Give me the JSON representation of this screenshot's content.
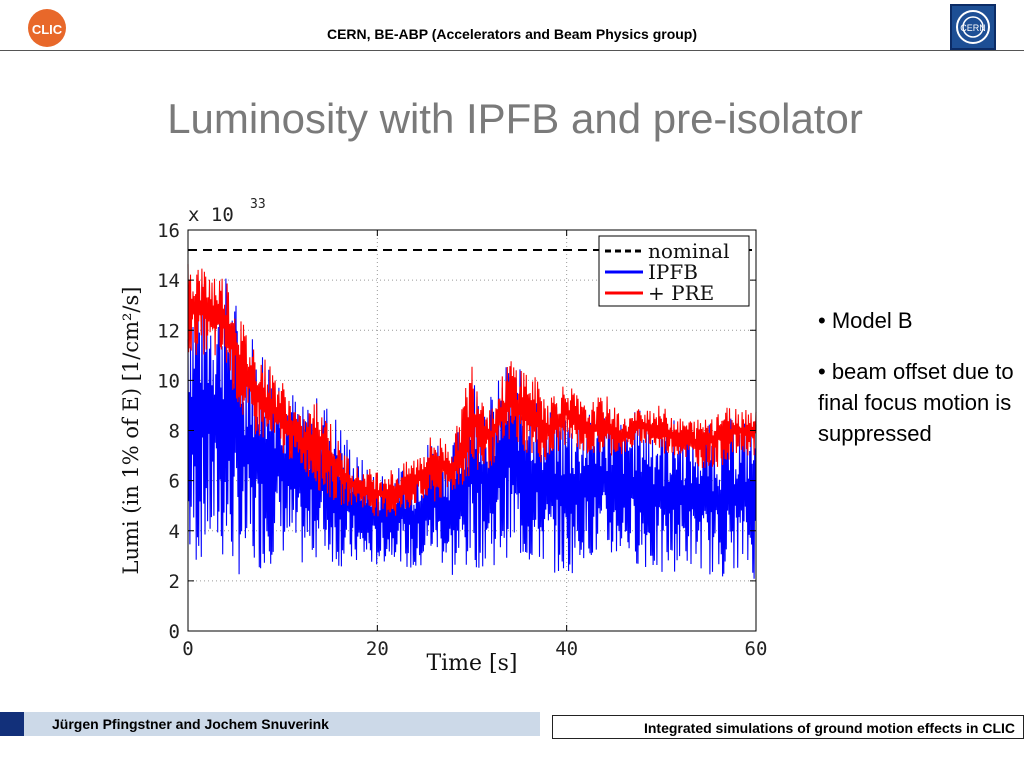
{
  "header": {
    "title": "CERN, BE-ABP (Accelerators and Beam Physics group)",
    "logo_left_text": "CLIC",
    "logo_right_text": "CERN"
  },
  "slide": {
    "title": "Luminosity with IPFB and pre-isolator",
    "bullets": [
      "• Model B",
      "• beam offset due to final focus motion is suppressed"
    ]
  },
  "footer": {
    "authors": "Jürgen Pfingstner and Jochem Snuverink",
    "talk_title": "Integrated simulations of ground motion effects in CLIC"
  },
  "colors": {
    "nominal": "#000000",
    "ipfb": "#0000ff",
    "pre": "#ff0000",
    "title_gray": "#7a7a7a",
    "footer_blue": "#12307a"
  },
  "chart_data": {
    "type": "line",
    "title": "",
    "xlabel": "Time [s]",
    "ylabel": "Lumi (in 1% of E) [1/cm²/s]",
    "y_multiplier": "x 10",
    "y_exponent": "33",
    "xlim": [
      0,
      60
    ],
    "ylim": [
      0,
      16
    ],
    "xticks": [
      "0",
      "20",
      "40",
      "60"
    ],
    "yticks": [
      "0",
      "2",
      "4",
      "6",
      "8",
      "10",
      "12",
      "14",
      "16"
    ],
    "grid": true,
    "legend_position": "top-right",
    "legend": [
      "nominal",
      "IPFB",
      "+ PRE"
    ],
    "series": [
      {
        "name": "nominal",
        "style": "dashed",
        "x": [
          0,
          60
        ],
        "y": [
          15.2,
          15.2
        ]
      },
      {
        "name": "IPFB",
        "style": "solid",
        "x": [
          0,
          2,
          4,
          6,
          8,
          10,
          12,
          14,
          16,
          18,
          20,
          22,
          24,
          26,
          28,
          30,
          32,
          34,
          36,
          38,
          40,
          42,
          44,
          46,
          48,
          50,
          52,
          54,
          56,
          58,
          60
        ],
        "y_max": [
          14.5,
          14.0,
          14.3,
          12.5,
          11.5,
          10.5,
          9.0,
          9.5,
          8.5,
          7.0,
          6.5,
          6.5,
          7.0,
          8.0,
          7.5,
          10.5,
          9.5,
          11.0,
          10.0,
          9.0,
          9.0,
          8.5,
          9.5,
          8.5,
          9.0,
          8.5,
          8.5,
          8.0,
          8.5,
          8.5,
          8.5
        ],
        "y_min": [
          2.0,
          3.0,
          2.5,
          2.0,
          2.5,
          3.0,
          2.5,
          3.0,
          2.5,
          2.5,
          2.5,
          3.0,
          2.0,
          3.0,
          2.0,
          2.5,
          2.5,
          3.0,
          2.5,
          2.5,
          2.0,
          3.0,
          2.5,
          3.0,
          2.5,
          2.0,
          2.5,
          2.5,
          2.0,
          2.5,
          2.0
        ]
      },
      {
        "name": "+ PRE",
        "style": "solid",
        "x": [
          0,
          2,
          4,
          6,
          8,
          10,
          12,
          14,
          16,
          18,
          20,
          22,
          24,
          26,
          28,
          30,
          32,
          34,
          36,
          38,
          40,
          42,
          44,
          46,
          48,
          50,
          52,
          54,
          56,
          58,
          60
        ],
        "y_max": [
          15.0,
          14.5,
          14.3,
          12.2,
          11.0,
          10.0,
          8.5,
          9.5,
          7.5,
          6.5,
          6.5,
          6.5,
          7.0,
          8.0,
          7.5,
          11.0,
          9.0,
          11.0,
          10.5,
          9.5,
          10.0,
          9.0,
          9.5,
          8.5,
          9.0,
          9.0,
          8.5,
          8.5,
          9.0,
          9.0,
          9.0
        ],
        "y_min": [
          11.0,
          11.0,
          10.5,
          8.0,
          7.5,
          7.0,
          6.5,
          5.5,
          5.0,
          5.0,
          4.5,
          4.5,
          5.0,
          5.0,
          5.5,
          6.0,
          6.5,
          7.5,
          7.0,
          6.5,
          7.5,
          7.0,
          7.0,
          7.0,
          7.5,
          7.0,
          7.0,
          6.5,
          6.5,
          7.0,
          7.0
        ]
      }
    ]
  }
}
